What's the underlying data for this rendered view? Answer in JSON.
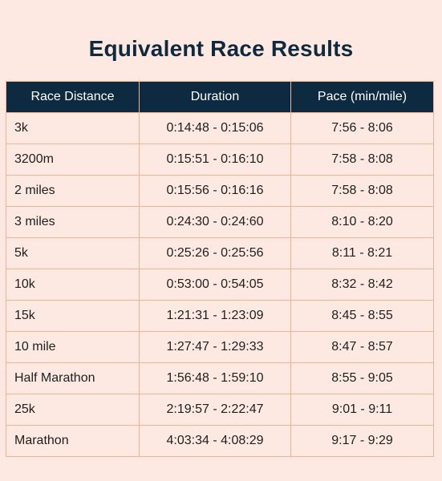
{
  "title": "Equivalent Race Results",
  "table": {
    "headers": [
      "Race Distance",
      "Duration",
      "Pace (min/mile)"
    ],
    "rows": [
      [
        "3k",
        "0:14:48 - 0:15:06",
        "7:56 - 8:06"
      ],
      [
        "3200m",
        "0:15:51 - 0:16:10",
        "7:58 - 8:08"
      ],
      [
        "2 miles",
        "0:15:56 - 0:16:16",
        "7:58 - 8:08"
      ],
      [
        "3 miles",
        "0:24:30 - 0:24:60",
        "8:10 - 8:20"
      ],
      [
        "5k",
        "0:25:26 - 0:25:56",
        "8:11 - 8:21"
      ],
      [
        "10k",
        "0:53:00 - 0:54:05",
        "8:32 - 8:42"
      ],
      [
        "15k",
        "1:21:31 - 1:23:09",
        "8:45 - 8:55"
      ],
      [
        "10 mile",
        "1:27:47 - 1:29:33",
        "8:47 - 8:57"
      ],
      [
        "Half Marathon",
        "1:56:48 - 1:59:10",
        "8:55 - 9:05"
      ],
      [
        "25k",
        "2:19:57 - 2:22:47",
        "9:01 - 9:11"
      ],
      [
        "Marathon",
        "4:03:34 - 4:08:29",
        "9:17 - 9:29"
      ]
    ]
  },
  "colors": {
    "background": "#fde9e1",
    "header_bg": "#0d2a40",
    "title_text": "#0f2a3f",
    "border": "#f0b393"
  }
}
